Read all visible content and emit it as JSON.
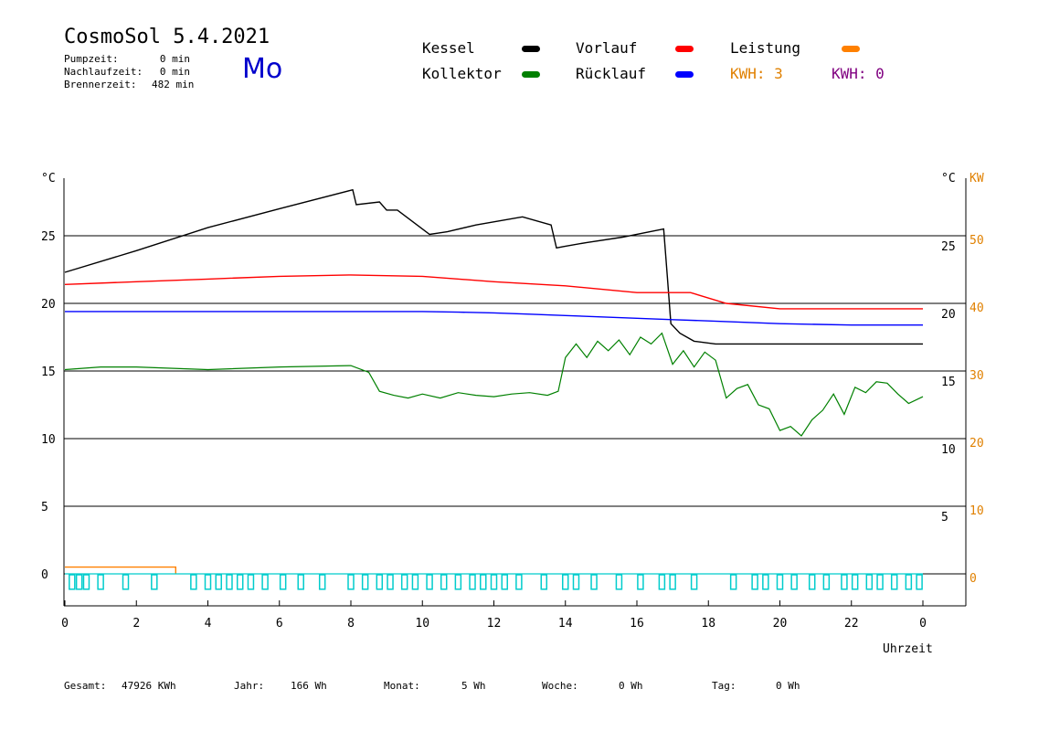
{
  "header": {
    "title": "CosmoSol 5.4.2021",
    "weekday": "Mo",
    "info": [
      {
        "label": "Pumpzeit:",
        "value": "0 min"
      },
      {
        "label": "Nachlaufzeit:",
        "value": "0 min"
      },
      {
        "label": "Brennerzeit:",
        "value": "482 min"
      }
    ]
  },
  "legend": {
    "kessel": {
      "label": "Kessel",
      "color": "#000000"
    },
    "kollektor": {
      "label": "Kollektor",
      "color": "#008000"
    },
    "vorlauf": {
      "label": "Vorlauf",
      "color": "#ff0000"
    },
    "ruecklauf": {
      "label": "Rücklauf",
      "color": "#0000ff"
    },
    "leistung": {
      "label": "Leistung",
      "color": "#ff8000"
    },
    "kwh1": "KWH: 3",
    "kwh2": "KWH: 0",
    "kwh1_color": "#e08000",
    "kwh2_color": "#800080"
  },
  "footer": {
    "gesamt_label": "Gesamt:",
    "gesamt_value": "47926 KWh",
    "jahr_label": "Jahr:",
    "jahr_value": "166 Wh",
    "monat_label": "Monat:",
    "monat_value": "5 Wh",
    "woche_label": "Woche:",
    "woche_value": "0 Wh",
    "tag_label": "Tag:",
    "tag_value": "0 Wh"
  },
  "chart_data": {
    "type": "line",
    "xlabel": "Uhrzeit",
    "ylabel_left": "°C",
    "ylabel_right_1": "°C",
    "ylabel_right_2": "KW",
    "xlim": [
      0,
      24
    ],
    "x_ticks": [
      "0",
      "2",
      "4",
      "6",
      "8",
      "10",
      "12",
      "14",
      "16",
      "18",
      "20",
      "22",
      "0"
    ],
    "ylim_left": [
      -2,
      30
    ],
    "y_ticks_left": [
      "0",
      "5",
      "10",
      "15",
      "20",
      "25"
    ],
    "y_ticks_right": [
      "5",
      "10",
      "15",
      "20",
      "25"
    ],
    "y_ticks_kw": [
      "0",
      "10",
      "20",
      "30",
      "40",
      "50"
    ],
    "grid": "horizontal",
    "series": [
      {
        "name": "Kessel",
        "color": "#000000",
        "x": [
          0,
          2,
          4,
          6,
          8.05,
          8.15,
          8.8,
          9.0,
          9.3,
          10.2,
          10.7,
          11.5,
          12.8,
          13.6,
          13.75,
          13.95,
          14.6,
          15.6,
          16.75,
          16.85,
          16.95,
          17.2,
          17.6,
          18.2,
          24
        ],
        "y": [
          22.3,
          23.9,
          25.6,
          27.0,
          28.4,
          27.3,
          27.5,
          26.9,
          26.9,
          25.1,
          25.3,
          25.8,
          26.4,
          25.8,
          24.1,
          24.2,
          24.5,
          24.9,
          25.5,
          22.0,
          18.5,
          17.8,
          17.2,
          17.0,
          17.0
        ]
      },
      {
        "name": "Vorlauf",
        "color": "#ff0000",
        "x": [
          0,
          2,
          4,
          6,
          8,
          10,
          12,
          14,
          16,
          17.5,
          18.5,
          20,
          22,
          24
        ],
        "y": [
          21.4,
          21.6,
          21.8,
          22.0,
          22.1,
          22.0,
          21.6,
          21.3,
          20.8,
          20.8,
          20.0,
          19.6,
          19.6,
          19.6
        ]
      },
      {
        "name": "Rücklauf",
        "color": "#0000ff",
        "x": [
          0,
          2,
          4,
          6,
          8,
          10,
          11,
          12,
          13,
          14,
          15,
          16,
          17,
          18,
          19,
          20,
          22,
          24
        ],
        "y": [
          19.4,
          19.4,
          19.4,
          19.4,
          19.4,
          19.4,
          19.35,
          19.3,
          19.2,
          19.1,
          19.0,
          18.9,
          18.8,
          18.7,
          18.6,
          18.5,
          18.4,
          18.4
        ],
        "x_end": 24
      },
      {
        "name": "Kollektor",
        "color": "#008000",
        "x": [
          0,
          1,
          2,
          4,
          6,
          8,
          8.5,
          8.8,
          9.2,
          9.6,
          10,
          10.5,
          11,
          11.5,
          12,
          12.5,
          13,
          13.5,
          13.8,
          14,
          14.3,
          14.6,
          14.9,
          15.2,
          15.5,
          15.8,
          16.1,
          16.4,
          16.7,
          17,
          17.3,
          17.6,
          17.9,
          18.2,
          18.5,
          18.8,
          19.1,
          19.4,
          19.7,
          20,
          20.3,
          20.6,
          20.9,
          21.2,
          21.5,
          21.8,
          22.1,
          22.4,
          22.7,
          23,
          23.3,
          23.6,
          24
        ],
        "y": [
          15.1,
          15.3,
          15.3,
          15.1,
          15.3,
          15.4,
          14.9,
          13.5,
          13.2,
          13.0,
          13.3,
          13.0,
          13.4,
          13.2,
          13.1,
          13.3,
          13.4,
          13.2,
          13.5,
          16.0,
          17.0,
          16.0,
          17.2,
          16.5,
          17.3,
          16.2,
          17.5,
          17.0,
          17.8,
          15.5,
          16.5,
          15.3,
          16.4,
          15.8,
          13.0,
          13.7,
          14.0,
          12.5,
          12.2,
          10.6,
          10.9,
          10.2,
          11.4,
          12.1,
          13.3,
          11.8,
          13.8,
          13.4,
          14.2,
          14.1,
          13.3,
          12.6,
          13.1
        ]
      },
      {
        "name": "Leistung",
        "color": "#ff8000",
        "x": [
          0,
          3.1,
          3.1
        ],
        "y": [
          0.5,
          0.5,
          0
        ]
      },
      {
        "name": "",
        "color": "#00cccc",
        "type": "pulses",
        "note_x": [
          0.2,
          0.4,
          0.6,
          1.0,
          1.7,
          2.5,
          3.6,
          4.0,
          4.3,
          4.6,
          4.9,
          5.2,
          5.6,
          6.1,
          6.6,
          7.2,
          8.0,
          8.4,
          8.8,
          9.1,
          9.5,
          9.8,
          10.2,
          10.6,
          11.0,
          11.4,
          11.7,
          12.0,
          12.3,
          12.7,
          13.4,
          14.0,
          14.3,
          14.8,
          15.5,
          16.1,
          16.7,
          17.0,
          17.6,
          18.7,
          19.3,
          19.6,
          20.0,
          20.4,
          20.9,
          21.3,
          21.8,
          22.1,
          22.5,
          22.8,
          23.2,
          23.6,
          23.9
        ],
        "y_high": -0.4
      }
    ]
  }
}
